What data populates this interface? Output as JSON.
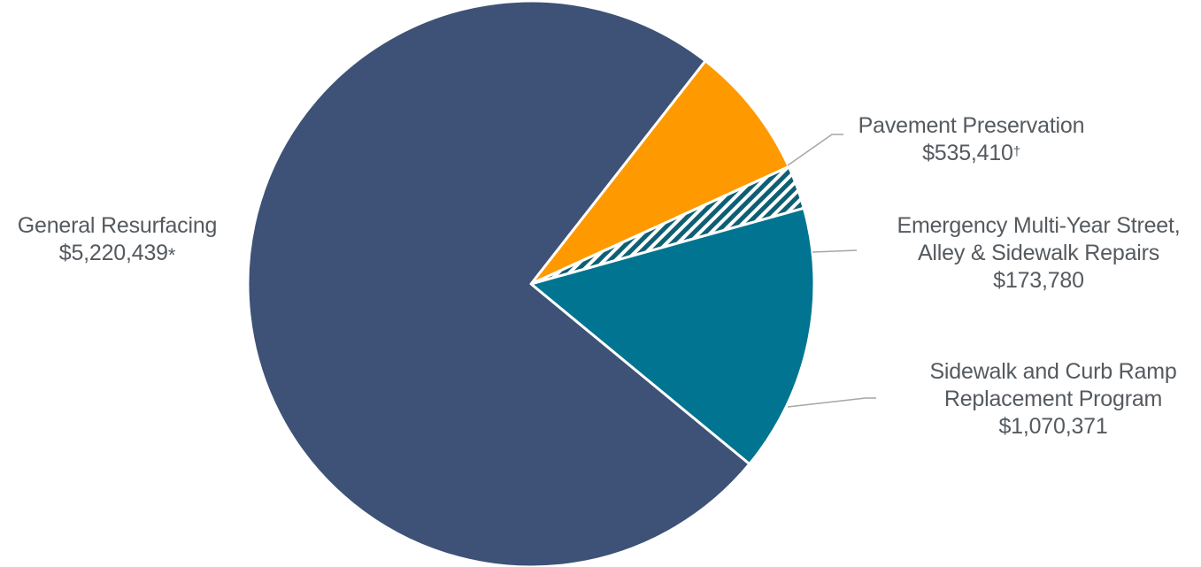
{
  "chart_data": {
    "type": "pie",
    "title": "",
    "slices": [
      {
        "name_lines": [
          "General Resurfacing"
        ],
        "value_label": "$5,220,439",
        "value": 5220439,
        "marker": "*",
        "color": "#3e5176",
        "pattern": "solid"
      },
      {
        "name_lines": [
          "Pavement Preservation"
        ],
        "value_label": "$535,410",
        "value": 535410,
        "marker": "†",
        "color": "#ff9900",
        "pattern": "solid"
      },
      {
        "name_lines": [
          "Emergency Multi-Year Street,",
          "Alley & Sidewalk Repairs"
        ],
        "value_label": "$173,780",
        "value": 173780,
        "marker": "",
        "color": "#0e5f73",
        "pattern": "diagonal-stripes"
      },
      {
        "name_lines": [
          "Sidewalk and Curb Ramp",
          "Replacement Program"
        ],
        "value_label": "$1,070,371",
        "value": 1070371,
        "marker": "",
        "color": "#007490",
        "pattern": "solid"
      }
    ],
    "leader_line_color": "#a6a6a6",
    "slice_border_color": "#ffffff",
    "label_color": "#555a5f"
  }
}
